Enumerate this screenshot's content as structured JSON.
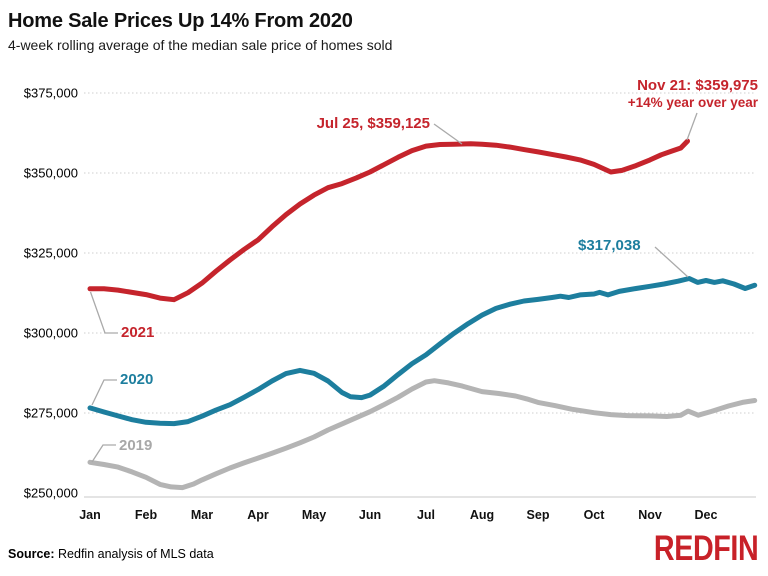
{
  "chart_data": {
    "type": "line",
    "title": "Home Sale Prices Up 14% From 2020",
    "subtitle": "4-week rolling average of the median sale price of homes sold",
    "xlabel": "",
    "ylabel": "",
    "ylim": [
      250000,
      375000
    ],
    "grid": "dotted horizontal gridlines, solid baseline at 250000",
    "legend": "inline labels near start of each line",
    "x_unit": "fractional months, 0 = Jan 1",
    "x_ticks": [
      "Jan",
      "Feb",
      "Mar",
      "Apr",
      "May",
      "Jun",
      "Jul",
      "Aug",
      "Sep",
      "Oct",
      "Nov",
      "Dec"
    ],
    "y_ticks": [
      {
        "v": 250000,
        "label": "$250,000"
      },
      {
        "v": 275000,
        "label": "$275,000"
      },
      {
        "v": 300000,
        "label": "$300,000"
      },
      {
        "v": 325000,
        "label": "$325,000"
      },
      {
        "v": 350000,
        "label": "$350,000"
      },
      {
        "v": 375000,
        "label": "$375,000"
      }
    ],
    "annotations": {
      "jul_peak": "Jul 25, $359,125",
      "nov_line1": "Nov 21: $359,975",
      "nov_line2": "+14% year over year",
      "end_2020": "$317,038"
    },
    "series": [
      {
        "name": "2021",
        "color": "#c5242c",
        "points": [
          [
            0,
            313800
          ],
          [
            0.25,
            313800
          ],
          [
            0.5,
            313400
          ],
          [
            0.75,
            312700
          ],
          [
            1.0,
            312000
          ],
          [
            1.25,
            310900
          ],
          [
            1.5,
            310400
          ],
          [
            1.75,
            312600
          ],
          [
            2.0,
            315600
          ],
          [
            2.25,
            319300
          ],
          [
            2.5,
            322800
          ],
          [
            2.75,
            326100
          ],
          [
            3.0,
            329100
          ],
          [
            3.25,
            333200
          ],
          [
            3.5,
            337000
          ],
          [
            3.75,
            340300
          ],
          [
            4.0,
            343100
          ],
          [
            4.25,
            345400
          ],
          [
            4.5,
            346700
          ],
          [
            4.75,
            348400
          ],
          [
            5.0,
            350300
          ],
          [
            5.25,
            352600
          ],
          [
            5.5,
            354900
          ],
          [
            5.75,
            357000
          ],
          [
            6.0,
            358400
          ],
          [
            6.25,
            358900
          ],
          [
            6.5,
            359000
          ],
          [
            6.8,
            359125
          ],
          [
            7.0,
            359000
          ],
          [
            7.25,
            358700
          ],
          [
            7.5,
            358100
          ],
          [
            7.75,
            357300
          ],
          [
            8.0,
            356600
          ],
          [
            8.25,
            355800
          ],
          [
            8.5,
            355000
          ],
          [
            8.75,
            354100
          ],
          [
            9.0,
            352700
          ],
          [
            9.3,
            350300
          ],
          [
            9.5,
            350800
          ],
          [
            9.75,
            352300
          ],
          [
            10.0,
            354100
          ],
          [
            10.2,
            355700
          ],
          [
            10.4,
            356900
          ],
          [
            10.55,
            357800
          ],
          [
            10.67,
            359975
          ]
        ]
      },
      {
        "name": "2020",
        "color": "#1d7e9e",
        "points": [
          [
            0,
            276600
          ],
          [
            0.25,
            275300
          ],
          [
            0.5,
            274100
          ],
          [
            0.75,
            272900
          ],
          [
            1.0,
            272100
          ],
          [
            1.25,
            271800
          ],
          [
            1.5,
            271700
          ],
          [
            1.75,
            272300
          ],
          [
            2.0,
            274000
          ],
          [
            2.25,
            275900
          ],
          [
            2.5,
            277600
          ],
          [
            2.75,
            279900
          ],
          [
            3.0,
            282300
          ],
          [
            3.25,
            285000
          ],
          [
            3.5,
            287300
          ],
          [
            3.75,
            288300
          ],
          [
            4.0,
            287400
          ],
          [
            4.25,
            285000
          ],
          [
            4.5,
            281400
          ],
          [
            4.65,
            280100
          ],
          [
            4.85,
            279800
          ],
          [
            5.0,
            280600
          ],
          [
            5.25,
            283400
          ],
          [
            5.5,
            287000
          ],
          [
            5.75,
            290400
          ],
          [
            6.0,
            293200
          ],
          [
            6.25,
            296600
          ],
          [
            6.5,
            299900
          ],
          [
            6.75,
            302900
          ],
          [
            7.0,
            305600
          ],
          [
            7.25,
            307700
          ],
          [
            7.5,
            309000
          ],
          [
            7.75,
            310000
          ],
          [
            8.0,
            310500
          ],
          [
            8.25,
            311100
          ],
          [
            8.4,
            311500
          ],
          [
            8.55,
            311100
          ],
          [
            8.75,
            311900
          ],
          [
            9.0,
            312200
          ],
          [
            9.1,
            312700
          ],
          [
            9.25,
            311900
          ],
          [
            9.45,
            313000
          ],
          [
            9.75,
            313900
          ],
          [
            10.0,
            314600
          ],
          [
            10.25,
            315300
          ],
          [
            10.5,
            316200
          ],
          [
            10.7,
            317038
          ],
          [
            10.85,
            315800
          ],
          [
            11.0,
            316400
          ],
          [
            11.15,
            315800
          ],
          [
            11.3,
            316300
          ],
          [
            11.5,
            315300
          ],
          [
            11.7,
            313900
          ],
          [
            11.87,
            314900
          ]
        ]
      },
      {
        "name": "2019",
        "color": "#b4b4b4",
        "points": [
          [
            0,
            259600
          ],
          [
            0.25,
            258900
          ],
          [
            0.5,
            258100
          ],
          [
            0.75,
            256600
          ],
          [
            1.0,
            254900
          ],
          [
            1.25,
            252700
          ],
          [
            1.45,
            251900
          ],
          [
            1.65,
            251700
          ],
          [
            1.85,
            252800
          ],
          [
            2.0,
            254100
          ],
          [
            2.25,
            256000
          ],
          [
            2.5,
            257800
          ],
          [
            2.75,
            259400
          ],
          [
            3.0,
            260900
          ],
          [
            3.25,
            262400
          ],
          [
            3.5,
            264000
          ],
          [
            3.75,
            265700
          ],
          [
            4.0,
            267500
          ],
          [
            4.25,
            269700
          ],
          [
            4.5,
            271600
          ],
          [
            4.75,
            273500
          ],
          [
            5.0,
            275400
          ],
          [
            5.25,
            277600
          ],
          [
            5.5,
            279900
          ],
          [
            5.75,
            282500
          ],
          [
            6.0,
            284700
          ],
          [
            6.15,
            285100
          ],
          [
            6.4,
            284400
          ],
          [
            6.65,
            283400
          ],
          [
            7.0,
            281700
          ],
          [
            7.3,
            281100
          ],
          [
            7.6,
            280300
          ],
          [
            7.8,
            279400
          ],
          [
            8.0,
            278300
          ],
          [
            8.3,
            277300
          ],
          [
            8.6,
            276200
          ],
          [
            9.0,
            275100
          ],
          [
            9.3,
            274500
          ],
          [
            9.6,
            274200
          ],
          [
            10.0,
            274100
          ],
          [
            10.3,
            273900
          ],
          [
            10.55,
            274300
          ],
          [
            10.68,
            275600
          ],
          [
            10.86,
            274300
          ],
          [
            11.1,
            275500
          ],
          [
            11.4,
            277200
          ],
          [
            11.65,
            278300
          ],
          [
            11.87,
            278900
          ]
        ]
      }
    ]
  },
  "footer": {
    "source_label": "Source:",
    "source_text": " Redfin analysis of MLS data",
    "logo_text": "REDFIN"
  },
  "colors": {
    "red": "#c5242c",
    "teal": "#1d7e9e",
    "gray_line": "#b4b4b4",
    "gray_label": "#a8a8a8",
    "grid": "#cfcfcf",
    "baseline": "#dcdcdc",
    "leader": "#aaaaaa",
    "text": "#111111",
    "logo": "#c82128"
  }
}
